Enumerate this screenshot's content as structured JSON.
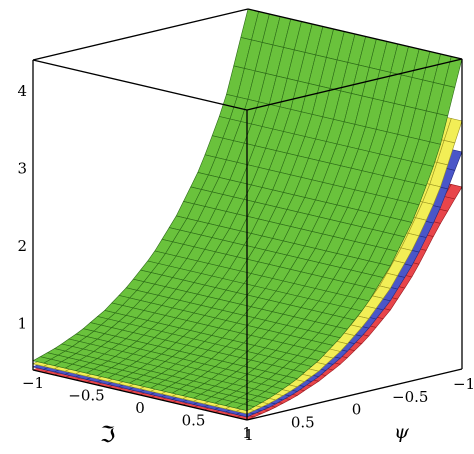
{
  "chart_data": {
    "type": "surface3d",
    "xlabel": "ℑ",
    "ylabel": "ψ",
    "zlabel": "",
    "x_ticks": [
      "−1",
      "−0.5",
      "0",
      "0.5",
      "1"
    ],
    "y_ticks": [
      "1",
      "0.5",
      "0",
      "−0.5",
      "−1"
    ],
    "z_ticks": [
      "1",
      "2",
      "3",
      "4"
    ],
    "xlim": [
      -1,
      1
    ],
    "ylim": [
      -1,
      1
    ],
    "zlim": [
      0.4,
      4.4
    ],
    "grid": "mesh",
    "series": [
      {
        "color": "#e8454a",
        "edge": "#9a1c22",
        "front_edge": [
          0.4,
          0.46,
          0.55,
          0.68,
          0.85,
          1.08,
          1.38,
          1.78,
          2.3,
          2.75
        ]
      },
      {
        "color": "#4a56c8",
        "edge": "#222a80",
        "front_edge": [
          0.44,
          0.5,
          0.6,
          0.74,
          0.93,
          1.18,
          1.5,
          1.93,
          2.48,
          3.2
        ]
      },
      {
        "color": "#f2ee56",
        "edge": "#9a9420",
        "front_edge": [
          0.48,
          0.55,
          0.66,
          0.81,
          1.02,
          1.3,
          1.66,
          2.13,
          2.73,
          3.6
        ]
      },
      {
        "color": "#6ac23c",
        "edge": "#2c6a18",
        "front_edge": [
          0.52,
          0.62,
          0.76,
          0.95,
          1.2,
          1.52,
          1.95,
          2.5,
          3.25,
          4.4
        ]
      }
    ]
  }
}
